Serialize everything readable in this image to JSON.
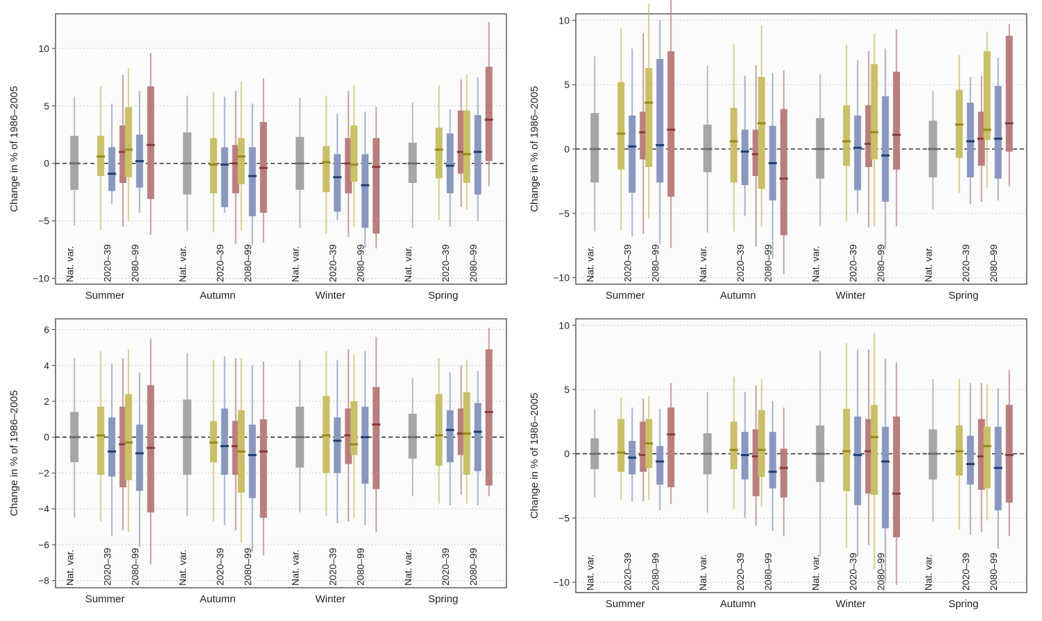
{
  "colors": {
    "nat": "#a6a6a6",
    "s1": "#c9c067",
    "s2": "#8a98c0",
    "s3": "#b97f7f",
    "median_nat": "#6f6f6f",
    "median_s1": "#978a1a",
    "median_s2": "#1f3f73",
    "median_s3": "#8c3a3a"
  },
  "chart_data": [
    {
      "type": "box",
      "ylabel": "Change in % of 1986–2005",
      "ylim": [
        -10.5,
        13
      ],
      "yticks": [
        -10,
        -5,
        0,
        5,
        10
      ],
      "grid": true,
      "categories": [
        "Summer",
        "Autumn",
        "Winter",
        "Spring"
      ],
      "box_labels": [
        "Nat. var.",
        "2020–39",
        "2080–99"
      ],
      "groups": [
        {
          "nat": [
            -5.4,
            -2.3,
            0,
            2.4,
            5.8
          ],
          "e20": [
            [
              -5.8,
              -1.1,
              0.6,
              2.4,
              6.7
            ],
            [
              -3.5,
              -2.4,
              -0.9,
              1.4,
              5.2
            ],
            [
              -5.5,
              -1.7,
              1.0,
              3.3,
              7.7
            ]
          ],
          "e80": [
            [
              -5.0,
              -1.2,
              1.2,
              4.9,
              8.3
            ],
            [
              -4.3,
              -2.1,
              0.2,
              2.5,
              6.3
            ],
            [
              -6.2,
              -3.1,
              1.6,
              6.7,
              9.6
            ]
          ]
        },
        {
          "nat": [
            -5.9,
            -2.7,
            0,
            2.7,
            5.9
          ],
          "e20": [
            [
              -6.0,
              -2.6,
              -0.1,
              2.2,
              6.2
            ],
            [
              -4.3,
              -3.8,
              -0.1,
              1.4,
              5.8
            ],
            [
              -7.0,
              -2.6,
              0.0,
              1.6,
              6.3
            ]
          ],
          "e80": [
            [
              -5.8,
              -1.8,
              0.6,
              2.2,
              7.1
            ],
            [
              -7.1,
              -4.6,
              -1.1,
              1.4,
              5.2
            ],
            [
              -6.9,
              -4.3,
              -0.4,
              3.6,
              7.4
            ]
          ]
        },
        {
          "nat": [
            -5.6,
            -2.3,
            0,
            2.3,
            5.7
          ],
          "e20": [
            [
              -6.1,
              -2.5,
              0.1,
              1.5,
              5.9
            ],
            [
              -4.9,
              -4.2,
              -1.2,
              0.8,
              4.3
            ],
            [
              -6.4,
              -2.6,
              0.0,
              2.2,
              6.3
            ]
          ],
          "e80": [
            [
              -5.5,
              -1.6,
              -0.1,
              3.3,
              6.8
            ],
            [
              -7.3,
              -5.6,
              -1.9,
              0.8,
              4.5
            ],
            [
              -7.4,
              -6.1,
              -0.3,
              2.2,
              4.9
            ]
          ]
        },
        {
          "nat": [
            -5.6,
            -1.7,
            0,
            1.8,
            5.3
          ],
          "e20": [
            [
              -4.9,
              -1.3,
              1.2,
              3.1,
              6.8
            ],
            [
              -5.5,
              -2.6,
              -0.2,
              2.6,
              4.7
            ],
            [
              -3.8,
              -0.9,
              1.0,
              4.6,
              7.3
            ]
          ],
          "e80": [
            [
              -4.0,
              -1.7,
              0.8,
              4.6,
              7.7
            ],
            [
              -5.0,
              -2.7,
              1.0,
              4.2,
              7.5
            ],
            [
              -2.0,
              0.2,
              3.8,
              8.4,
              12.3
            ]
          ]
        }
      ]
    },
    {
      "type": "box",
      "ylabel": "Change in % of 1986–2005",
      "ylim": [
        -10.5,
        10.5
      ],
      "yticks": [
        -10,
        -5,
        0,
        5,
        10
      ],
      "grid": true,
      "categories": [
        "Summer",
        "Autumn",
        "Winter",
        "Spring"
      ],
      "box_labels": [
        "Nat. var.",
        "2020–39",
        "2080–99"
      ],
      "groups": [
        {
          "nat": [
            -6.4,
            -2.6,
            0,
            2.8,
            7.2
          ],
          "e20": [
            [
              -6.3,
              -1.6,
              1.2,
              5.2,
              9.4
            ],
            [
              -6.8,
              -3.4,
              0.2,
              2.6,
              7.8
            ],
            [
              -6.6,
              -0.8,
              1.3,
              2.9,
              9.0
            ]
          ],
          "e80": [
            [
              -5.4,
              -1.4,
              3.6,
              6.3,
              11.3
            ],
            [
              -7.4,
              -2.6,
              0.3,
              7.0,
              10.0
            ],
            [
              -7.7,
              -3.7,
              1.5,
              7.6,
              11.9
            ]
          ]
        },
        {
          "nat": [
            -6.5,
            -1.8,
            0,
            1.9,
            6.5
          ],
          "e20": [
            [
              -6.4,
              -2.6,
              0.6,
              3.2,
              8.2
            ],
            [
              -5.2,
              -2.8,
              -0.2,
              1.5,
              5.7
            ],
            [
              -7.6,
              -2.1,
              -0.4,
              1.5,
              6.5
            ]
          ],
          "e80": [
            [
              -6.0,
              -3.1,
              2.0,
              5.6,
              9.6
            ],
            [
              -8.5,
              -4.0,
              -1.1,
              1.8,
              5.9
            ],
            [
              -9.7,
              -6.7,
              -2.3,
              3.1,
              6.1
            ]
          ]
        },
        {
          "nat": [
            -6.0,
            -2.3,
            0,
            2.4,
            5.8
          ],
          "e20": [
            [
              -5.6,
              -1.3,
              0.6,
              3.4,
              8.1
            ],
            [
              -5.0,
              -3.2,
              0.1,
              2.6,
              6.9
            ],
            [
              -6.1,
              -1.4,
              0.4,
              3.4,
              7.6
            ]
          ],
          "e80": [
            [
              -6.0,
              -0.8,
              1.3,
              6.6,
              9.0
            ],
            [
              -7.8,
              -4.1,
              -0.5,
              4.1,
              7.8
            ],
            [
              -6.0,
              -1.6,
              1.1,
              6.0,
              9.3
            ]
          ]
        },
        {
          "nat": [
            -4.7,
            -2.2,
            0,
            2.2,
            4.5
          ],
          "e20": [
            [
              -3.4,
              -0.7,
              1.9,
              4.6,
              7.3
            ],
            [
              -4.3,
              -2.2,
              0.6,
              3.6,
              5.6
            ],
            [
              -4.1,
              -1.3,
              0.8,
              2.9,
              5.7
            ]
          ],
          "e80": [
            [
              -3.0,
              0.7,
              1.5,
              7.6,
              9.1
            ],
            [
              -4.0,
              -2.3,
              0.8,
              4.9,
              7.1
            ],
            [
              -2.9,
              -0.2,
              2.0,
              8.8,
              9.7
            ]
          ]
        }
      ]
    },
    {
      "type": "box",
      "ylabel": "Change in % of 1986–2005",
      "ylim": [
        -8.4,
        6.6
      ],
      "yticks": [
        -8,
        -6,
        -4,
        -2,
        0,
        2,
        4,
        6
      ],
      "grid": true,
      "categories": [
        "Summer",
        "Autumn",
        "Winter",
        "Spring"
      ],
      "box_labels": [
        "Nat. var.",
        "2020–39",
        "2080–99"
      ],
      "groups": [
        {
          "nat": [
            -4.5,
            -1.4,
            0,
            1.4,
            4.4
          ],
          "e20": [
            [
              -4.7,
              -2.1,
              0.1,
              1.7,
              4.8
            ],
            [
              -5.5,
              -2.2,
              -0.8,
              1.1,
              4.1
            ],
            [
              -5.2,
              -2.8,
              -0.4,
              1.7,
              4.4
            ]
          ],
          "e80": [
            [
              -5.3,
              -2.4,
              -0.3,
              2.4,
              4.9
            ],
            [
              -6.1,
              -3.0,
              -0.9,
              0.7,
              3.6
            ],
            [
              -7.1,
              -4.2,
              -0.6,
              2.9,
              5.5
            ]
          ]
        },
        {
          "nat": [
            -4.4,
            -2.1,
            0,
            2.1,
            4.7
          ],
          "e20": [
            [
              -4.7,
              -1.4,
              -0.3,
              0.9,
              4.3
            ],
            [
              -4.9,
              -2.1,
              -0.5,
              1.6,
              4.5
            ],
            [
              -5.2,
              -2.1,
              -0.5,
              0.9,
              4.4
            ]
          ],
          "e80": [
            [
              -5.9,
              -3.1,
              -0.8,
              1.5,
              4.4
            ],
            [
              -6.4,
              -3.4,
              -1.0,
              0.7,
              4.0
            ],
            [
              -6.6,
              -4.5,
              -0.8,
              1.0,
              4.2
            ]
          ]
        },
        {
          "nat": [
            -4.2,
            -1.7,
            0,
            1.7,
            4.3
          ],
          "e20": [
            [
              -4.4,
              -2.0,
              0.1,
              2.3,
              4.8
            ],
            [
              -4.8,
              -2.0,
              -0.2,
              1.1,
              4.3
            ],
            [
              -4.7,
              -1.5,
              0.1,
              1.6,
              4.9
            ]
          ],
          "e80": [
            [
              -4.5,
              -1.0,
              -0.4,
              2.0,
              4.6
            ],
            [
              -4.9,
              -2.6,
              0.0,
              1.7,
              4.8
            ],
            [
              -5.3,
              -2.9,
              0.7,
              2.8,
              5.6
            ]
          ]
        },
        {
          "nat": [
            -3.3,
            -1.2,
            0,
            1.3,
            3.3
          ],
          "e20": [
            [
              -3.7,
              -1.6,
              0.1,
              2.4,
              4.4
            ],
            [
              -3.8,
              -1.4,
              0.4,
              1.5,
              3.6
            ],
            [
              -3.2,
              -1.0,
              0.2,
              1.6,
              4.0
            ]
          ],
          "e80": [
            [
              -3.7,
              -2.1,
              0.2,
              2.5,
              4.3
            ],
            [
              -3.8,
              -1.9,
              0.3,
              1.9,
              3.7
            ],
            [
              -3.3,
              -2.7,
              1.4,
              4.9,
              6.1
            ]
          ]
        }
      ]
    },
    {
      "type": "box",
      "ylabel": "Change in % of 1986–2005",
      "ylim": [
        -10.8,
        10.5
      ],
      "yticks": [
        -10,
        -5,
        0,
        5,
        10
      ],
      "grid": true,
      "categories": [
        "Summer",
        "Autumn",
        "Winter",
        "Spring"
      ],
      "box_labels": [
        "Nat. var.",
        "2020–39",
        "2080–99"
      ],
      "groups": [
        {
          "nat": [
            -3.4,
            -1.2,
            0,
            1.2,
            3.5
          ],
          "e20": [
            [
              -3.6,
              -1.4,
              0.1,
              2.7,
              4.4
            ],
            [
              -3.7,
              -1.6,
              -0.3,
              1.0,
              3.6
            ],
            [
              -3.7,
              -1.4,
              -0.1,
              2.5,
              4.3
            ]
          ],
          "e80": [
            [
              -3.6,
              -1.1,
              0.8,
              2.7,
              4.5
            ],
            [
              -4.4,
              -2.4,
              -0.6,
              0.6,
              3.5
            ],
            [
              -3.9,
              -2.6,
              1.5,
              3.6,
              5.5
            ]
          ]
        },
        {
          "nat": [
            -4.6,
            -1.6,
            0,
            1.6,
            4.8
          ],
          "e20": [
            [
              -4.3,
              -1.2,
              0.3,
              2.5,
              6.0
            ],
            [
              -5.0,
              -2.0,
              -0.1,
              1.7,
              4.8
            ],
            [
              -5.6,
              -3.3,
              -0.2,
              1.9,
              5.3
            ]
          ],
          "e80": [
            [
              -4.1,
              -1.8,
              0.3,
              3.4,
              5.8
            ],
            [
              -6.0,
              -2.7,
              -1.4,
              1.7,
              4.1
            ],
            [
              -6.4,
              -3.4,
              -1.1,
              0.4,
              3.6
            ]
          ]
        },
        {
          "nat": [
            -8.0,
            -2.2,
            0,
            2.2,
            8.0
          ],
          "e20": [
            [
              -7.3,
              -2.9,
              0.2,
              3.5,
              8.6
            ],
            [
              -8.0,
              -4.0,
              -0.1,
              2.9,
              8.1
            ],
            [
              -7.1,
              -3.1,
              0.2,
              2.7,
              8.1
            ]
          ],
          "e80": [
            [
              -9.0,
              -3.2,
              1.3,
              3.8,
              9.4
            ],
            [
              -10.0,
              -5.8,
              -0.6,
              2.1,
              7.4
            ],
            [
              -10.2,
              -6.5,
              -3.1,
              2.9,
              7.1
            ]
          ]
        },
        {
          "nat": [
            -5.3,
            -2.0,
            0,
            1.9,
            5.8
          ],
          "e20": [
            [
              -5.9,
              -1.7,
              0.2,
              2.2,
              5.8
            ],
            [
              -6.3,
              -2.4,
              -0.8,
              1.4,
              5.5
            ],
            [
              -6.1,
              -2.8,
              -0.2,
              2.7,
              5.5
            ]
          ],
          "e80": [
            [
              -5.2,
              -2.7,
              0.6,
              2.1,
              5.4
            ],
            [
              -7.4,
              -4.4,
              -1.1,
              2.1,
              5.1
            ],
            [
              -6.4,
              -3.8,
              -0.1,
              3.8,
              6.5
            ]
          ]
        }
      ]
    }
  ]
}
